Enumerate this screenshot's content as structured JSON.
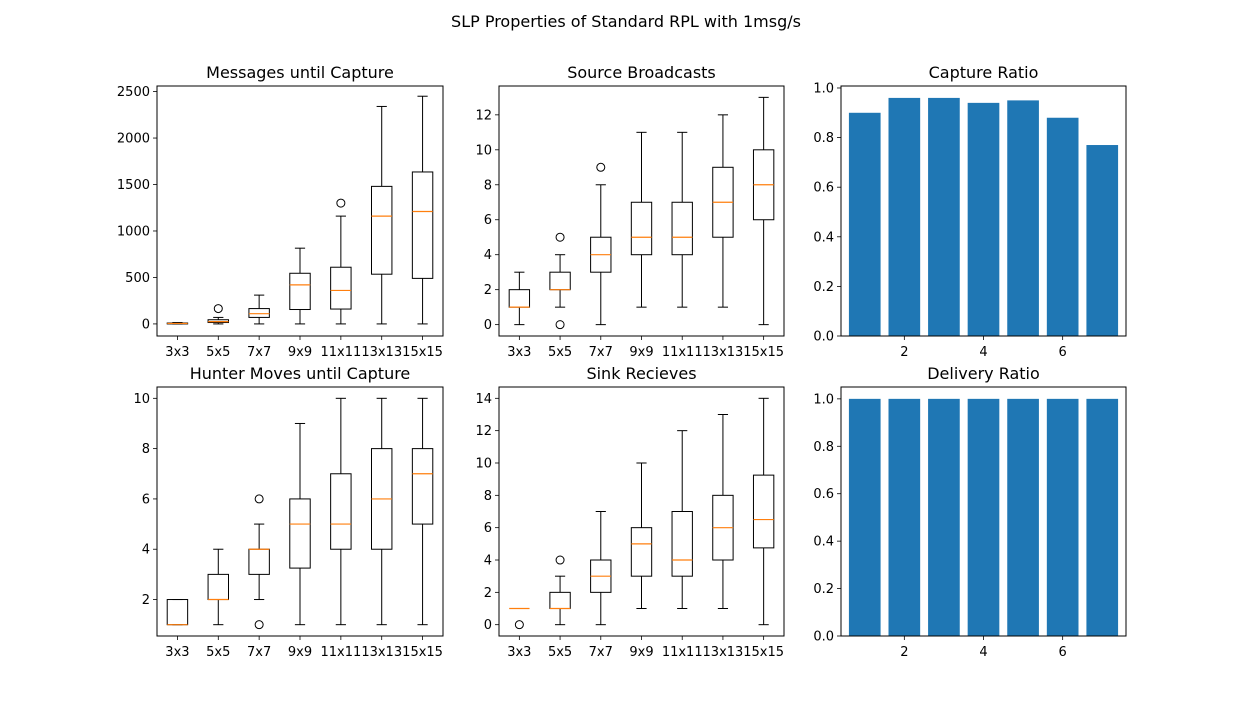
{
  "figure": {
    "title": "SLP Properties of Standard RPL with 1msg/s",
    "colors": {
      "box": "#000000",
      "median": "#ff7f0e",
      "bar": "#1f77b4"
    }
  },
  "chart_data": [
    {
      "type": "boxplot",
      "title": "Messages until Capture",
      "categories": [
        "3x3",
        "5x5",
        "7x7",
        "9x9",
        "11x11",
        "13x13",
        "15x15"
      ],
      "ylim": [
        -130,
        2560
      ],
      "yticks": [
        0,
        500,
        1000,
        1500,
        2000,
        2500
      ],
      "boxes": [
        {
          "whislo": 0,
          "q1": 0,
          "med": 5,
          "q3": 10,
          "whishi": 15,
          "fliers": []
        },
        {
          "whislo": 0,
          "q1": 15,
          "med": 25,
          "q3": 45,
          "whishi": 70,
          "fliers": [
            165
          ]
        },
        {
          "whislo": 0,
          "q1": 70,
          "med": 110,
          "q3": 165,
          "whishi": 310,
          "fliers": []
        },
        {
          "whislo": 0,
          "q1": 155,
          "med": 420,
          "q3": 545,
          "whishi": 815,
          "fliers": []
        },
        {
          "whislo": 0,
          "q1": 160,
          "med": 360,
          "q3": 610,
          "whishi": 1160,
          "fliers": [
            1300
          ]
        },
        {
          "whislo": 0,
          "q1": 535,
          "med": 1160,
          "q3": 1480,
          "whishi": 2340,
          "fliers": []
        },
        {
          "whislo": 0,
          "q1": 490,
          "med": 1210,
          "q3": 1635,
          "whishi": 2450,
          "fliers": []
        }
      ]
    },
    {
      "type": "boxplot",
      "title": "Source Broadcasts",
      "categories": [
        "3x3",
        "5x5",
        "7x7",
        "9x9",
        "11x11",
        "13x13",
        "15x15"
      ],
      "ylim": [
        -0.65,
        13.65
      ],
      "yticks": [
        0,
        2,
        4,
        6,
        8,
        10,
        12
      ],
      "boxes": [
        {
          "whislo": 0,
          "q1": 1,
          "med": 1,
          "q3": 2,
          "whishi": 3,
          "fliers": []
        },
        {
          "whislo": 1,
          "q1": 2,
          "med": 2,
          "q3": 3,
          "whishi": 4,
          "fliers": [
            0,
            5
          ]
        },
        {
          "whislo": 0,
          "q1": 3,
          "med": 4,
          "q3": 5,
          "whishi": 8,
          "fliers": [
            9
          ]
        },
        {
          "whislo": 1,
          "q1": 4,
          "med": 5,
          "q3": 7,
          "whishi": 11,
          "fliers": []
        },
        {
          "whislo": 1,
          "q1": 4,
          "med": 5,
          "q3": 7,
          "whishi": 11,
          "fliers": []
        },
        {
          "whislo": 1,
          "q1": 5,
          "med": 7,
          "q3": 9,
          "whishi": 12,
          "fliers": []
        },
        {
          "whislo": 0,
          "q1": 6,
          "med": 8,
          "q3": 10,
          "whishi": 13,
          "fliers": []
        }
      ]
    },
    {
      "type": "bar",
      "title": "Capture Ratio",
      "x": [
        1,
        2,
        3,
        4,
        5,
        6,
        7
      ],
      "values": [
        0.9,
        0.96,
        0.96,
        0.94,
        0.95,
        0.88,
        0.77
      ],
      "xlim": [
        0.4,
        7.6
      ],
      "xticks": [
        2,
        4,
        6
      ],
      "ylim": [
        0,
        1.008
      ],
      "yticks": [
        0.0,
        0.2,
        0.4,
        0.6,
        0.8,
        1.0
      ]
    },
    {
      "type": "boxplot",
      "title": "Hunter Moves until Capture",
      "categories": [
        "3x3",
        "5x5",
        "7x7",
        "9x9",
        "11x11",
        "13x13",
        "15x15"
      ],
      "ylim": [
        0.55,
        10.45
      ],
      "yticks": [
        2,
        4,
        6,
        8,
        10
      ],
      "boxes": [
        {
          "whislo": 1,
          "q1": 1,
          "med": 1,
          "q3": 2,
          "whishi": 2,
          "fliers": []
        },
        {
          "whislo": 1,
          "q1": 2,
          "med": 2,
          "q3": 3,
          "whishi": 4,
          "fliers": []
        },
        {
          "whislo": 2,
          "q1": 3,
          "med": 4,
          "q3": 4,
          "whishi": 5,
          "fliers": [
            1,
            6
          ]
        },
        {
          "whislo": 1,
          "q1": 3.25,
          "med": 5,
          "q3": 6,
          "whishi": 9,
          "fliers": []
        },
        {
          "whislo": 1,
          "q1": 4,
          "med": 5,
          "q3": 7,
          "whishi": 10,
          "fliers": []
        },
        {
          "whislo": 1,
          "q1": 4,
          "med": 6,
          "q3": 8,
          "whishi": 10,
          "fliers": []
        },
        {
          "whislo": 1,
          "q1": 5,
          "med": 7,
          "q3": 8,
          "whishi": 10,
          "fliers": []
        }
      ]
    },
    {
      "type": "boxplot",
      "title": "Sink Recieves",
      "categories": [
        "3x3",
        "5x5",
        "7x7",
        "9x9",
        "11x11",
        "13x13",
        "15x15"
      ],
      "ylim": [
        -0.7,
        14.7
      ],
      "yticks": [
        0,
        2,
        4,
        6,
        8,
        10,
        12,
        14
      ],
      "boxes": [
        {
          "whislo": 1,
          "q1": 1,
          "med": 1,
          "q3": 1,
          "whishi": 1,
          "fliers": [
            0
          ]
        },
        {
          "whislo": 0,
          "q1": 1,
          "med": 1,
          "q3": 2,
          "whishi": 3,
          "fliers": [
            4
          ]
        },
        {
          "whislo": 0,
          "q1": 2,
          "med": 3,
          "q3": 4,
          "whishi": 7,
          "fliers": []
        },
        {
          "whislo": 1,
          "q1": 3,
          "med": 5,
          "q3": 6,
          "whishi": 10,
          "fliers": []
        },
        {
          "whislo": 1,
          "q1": 3,
          "med": 4,
          "q3": 7,
          "whishi": 12,
          "fliers": []
        },
        {
          "whislo": 1,
          "q1": 4,
          "med": 6,
          "q3": 8,
          "whishi": 13,
          "fliers": []
        },
        {
          "whislo": 0,
          "q1": 4.75,
          "med": 6.5,
          "q3": 9.25,
          "whishi": 14,
          "fliers": []
        }
      ]
    },
    {
      "type": "bar",
      "title": "Delivery Ratio",
      "x": [
        1,
        2,
        3,
        4,
        5,
        6,
        7
      ],
      "values": [
        1.0,
        1.0,
        1.0,
        1.0,
        1.0,
        1.0,
        1.0
      ],
      "xlim": [
        0.4,
        7.6
      ],
      "xticks": [
        2,
        4,
        6
      ],
      "ylim": [
        0,
        1.05
      ],
      "yticks": [
        0.0,
        0.2,
        0.4,
        0.6,
        0.8,
        1.0
      ]
    }
  ]
}
